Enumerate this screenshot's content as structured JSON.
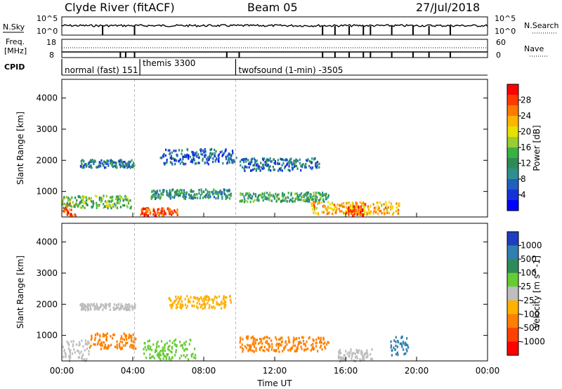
{
  "header": {
    "station": "Clyde River (fitACF)",
    "beam": "Beam 05",
    "date": "27/Jul/2018"
  },
  "panel_labels": {
    "nsky": "N.Sky",
    "nsearch": "N.Search",
    "freq_line1": "Freq.",
    "freq_line2": "[MHz]",
    "nave": "Nave",
    "cpid": "CPID",
    "nsky_ticks": [
      "10^5",
      "10^0"
    ],
    "nsearch_ticks": [
      "10^5",
      "10^0"
    ],
    "freq_ticks": [
      "18",
      "8"
    ],
    "nave_ticks": [
      "60",
      "0"
    ]
  },
  "cpid_modes": [
    {
      "label": "normal (fast) 151",
      "start_hour": 0.0
    },
    {
      "label": "themis 3300",
      "start_hour": 4.4
    },
    {
      "label": "twofsound (1-min) -3505",
      "start_hour": 9.8
    }
  ],
  "colorbars": {
    "power": {
      "label": "Power [dB]",
      "ticks": [
        "28",
        "24",
        "20",
        "16",
        "12",
        "8",
        "4"
      ],
      "colors": [
        "#ff0000",
        "#ff3a00",
        "#ff7a00",
        "#ffb400",
        "#e8e000",
        "#9acd32",
        "#3cb043",
        "#2e8b57",
        "#2f8f8f",
        "#1f5fbf",
        "#1432d8",
        "#0000ff"
      ]
    },
    "velocity": {
      "label": "Velocity [m s^-1]",
      "ticks": [
        "1000",
        "500",
        "100",
        "25",
        "-25",
        "-100",
        "-500",
        "-1000"
      ],
      "colors": [
        "#1c3fbf",
        "#2f7fb0",
        "#2e8b57",
        "#66cc33",
        "#bebebe",
        "#ffb000",
        "#ff8000",
        "#ff4000",
        "#ff0000"
      ]
    }
  },
  "chart_data": {
    "type": "heatmap",
    "xlabel": "Time UT",
    "ylabel": "Slant Range [km]",
    "x_ticks": [
      "00:00",
      "04:00",
      "08:00",
      "12:00",
      "16:00",
      "20:00",
      "00:00"
    ],
    "y_ticks": [
      1000,
      2000,
      3000,
      4000
    ],
    "xlim": [
      0,
      24
    ],
    "ylim": [
      180,
      4600
    ],
    "panels": [
      {
        "name": "power",
        "bands": [
          {
            "t0": 0.0,
            "t1": 0.8,
            "r0": 250,
            "r1": 700,
            "value_db": 28
          },
          {
            "t0": 0.0,
            "t1": 3.9,
            "r0": 500,
            "r1": 900,
            "value_db": 14
          },
          {
            "t0": 1.0,
            "t1": 4.1,
            "r0": 1800,
            "r1": 2050,
            "value_db": 8
          },
          {
            "t0": 4.4,
            "t1": 6.5,
            "r0": 250,
            "r1": 500,
            "value_db": 27
          },
          {
            "t0": 5.0,
            "t1": 9.5,
            "r0": 800,
            "r1": 1100,
            "value_db": 10
          },
          {
            "t0": 5.5,
            "t1": 9.8,
            "r0": 1900,
            "r1": 2400,
            "value_db": 6
          },
          {
            "t0": 10.0,
            "t1": 15.0,
            "r0": 700,
            "r1": 1000,
            "value_db": 12
          },
          {
            "t0": 10.0,
            "t1": 14.5,
            "r0": 1700,
            "r1": 2100,
            "value_db": 7
          },
          {
            "t0": 14.0,
            "t1": 19.0,
            "r0": 300,
            "r1": 700,
            "value_db": 22
          },
          {
            "t0": 16.0,
            "t1": 17.0,
            "r0": 250,
            "r1": 550,
            "value_db": 28
          }
        ]
      },
      {
        "name": "velocity",
        "bands": [
          {
            "t0": 0.0,
            "t1": 1.5,
            "r0": 200,
            "r1": 900,
            "value_ms": 0
          },
          {
            "t0": 1.0,
            "t1": 4.1,
            "r0": 1850,
            "r1": 2050,
            "value_ms": 0
          },
          {
            "t0": 1.5,
            "t1": 4.2,
            "r0": 600,
            "r1": 1100,
            "value_ms": -150
          },
          {
            "t0": 4.5,
            "t1": 7.5,
            "r0": 250,
            "r1": 900,
            "value_ms": 50
          },
          {
            "t0": 6.0,
            "t1": 9.5,
            "r0": 1900,
            "r1": 2300,
            "value_ms": -60
          },
          {
            "t0": 10.0,
            "t1": 15.0,
            "r0": 500,
            "r1": 1000,
            "value_ms": -200
          },
          {
            "t0": 15.5,
            "t1": 17.5,
            "r0": 200,
            "r1": 600,
            "value_ms": 0
          },
          {
            "t0": 18.5,
            "t1": 19.5,
            "r0": 400,
            "r1": 1000,
            "value_ms": 800
          }
        ]
      }
    ]
  }
}
